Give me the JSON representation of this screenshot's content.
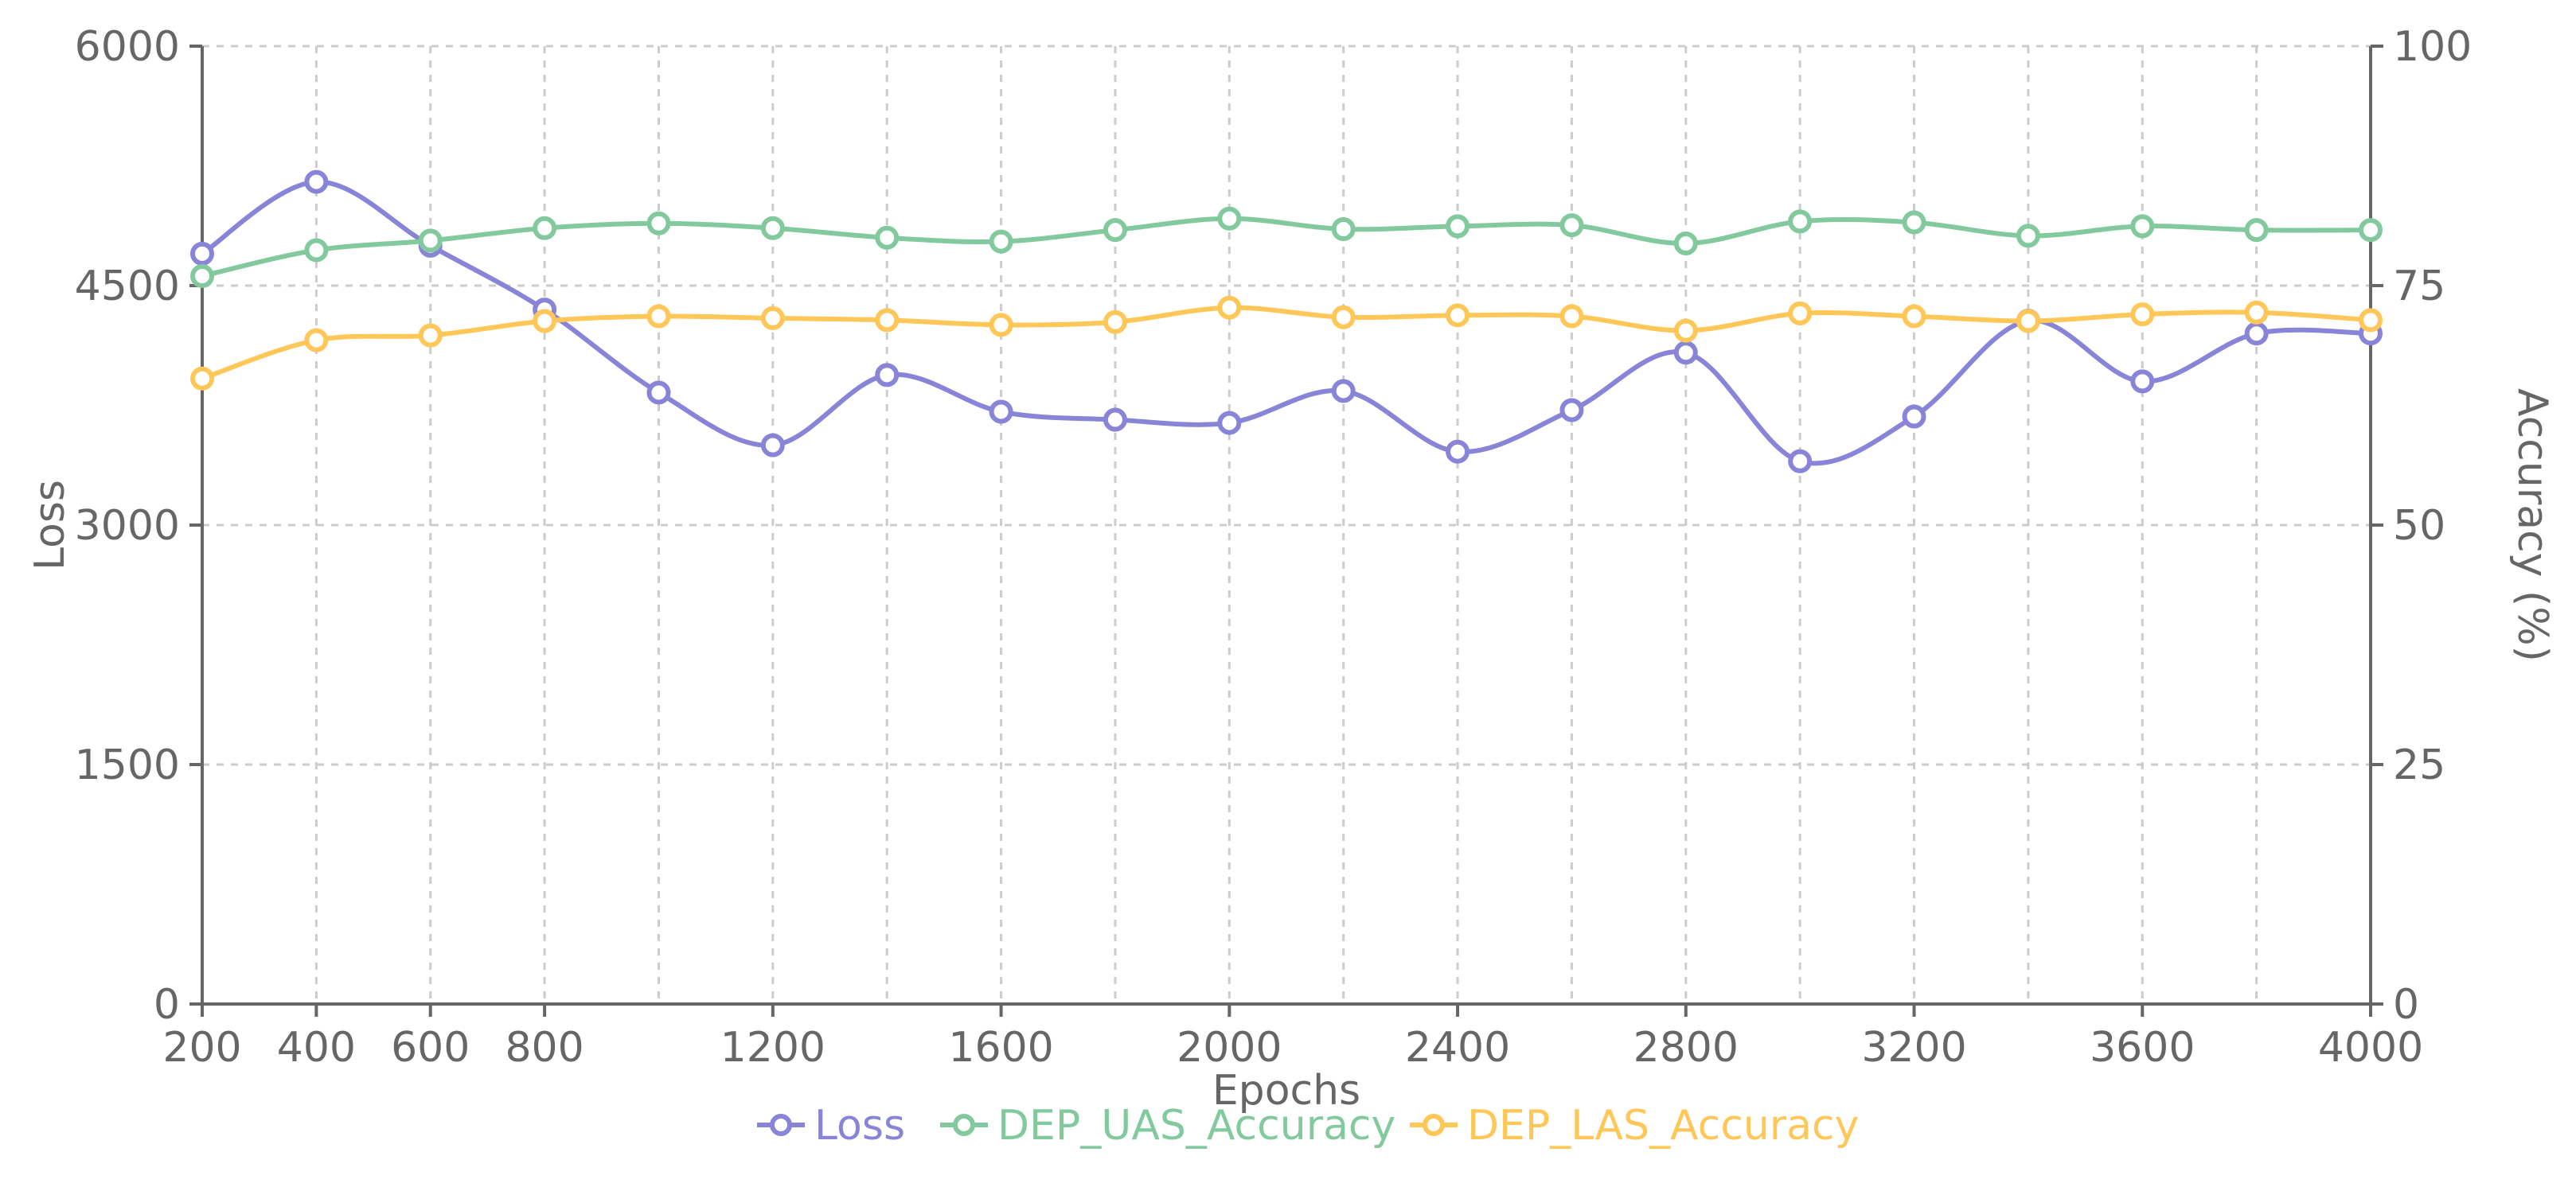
{
  "colors": {
    "loss": "#8884d8",
    "uas": "#82ca9d",
    "las": "#ffc658",
    "grid": "#cccccc",
    "axis": "#666666",
    "text": "#666666"
  },
  "chart_data": {
    "type": "line",
    "x": [
      200,
      400,
      600,
      800,
      1000,
      1200,
      1400,
      1600,
      1800,
      2000,
      2200,
      2400,
      2600,
      2800,
      3000,
      3200,
      3400,
      3600,
      3800,
      4000
    ],
    "x_ticks": [
      200,
      400,
      600,
      800,
      1200,
      1600,
      2000,
      2400,
      2800,
      3200,
      3600,
      4000
    ],
    "xlabel": "Epochs",
    "xlim": [
      200,
      4000
    ],
    "ylabel_left": "Loss",
    "ylim_left": [
      0,
      6000
    ],
    "yticks_left": [
      0,
      1500,
      3000,
      4500,
      6000
    ],
    "ylabel_right": "Accuracy (%)",
    "ylim_right": [
      0,
      100
    ],
    "yticks_right": [
      0,
      25,
      50,
      75,
      100
    ],
    "grid": true,
    "legend_position": "bottom-center",
    "series": [
      {
        "name": "Loss",
        "axis": "left",
        "color_key": "loss",
        "values": [
          4700,
          5150,
          4750,
          4350,
          3830,
          3500,
          3940,
          3710,
          3660,
          3640,
          3840,
          3460,
          3720,
          4080,
          3400,
          3680,
          4280,
          3900,
          4200,
          4200
        ]
      },
      {
        "name": "DEP_UAS_Accuracy",
        "axis": "right",
        "color_key": "uas",
        "values": [
          76.0,
          78.7,
          79.7,
          81.0,
          81.5,
          81.0,
          80.0,
          79.6,
          80.8,
          82.0,
          80.9,
          81.2,
          81.3,
          79.4,
          81.7,
          81.6,
          80.2,
          81.2,
          80.8,
          80.8
        ]
      },
      {
        "name": "DEP_LAS_Accuracy",
        "axis": "right",
        "color_key": "las",
        "values": [
          65.3,
          69.3,
          69.8,
          71.3,
          71.8,
          71.6,
          71.4,
          70.9,
          71.2,
          72.7,
          71.7,
          71.9,
          71.8,
          70.3,
          72.1,
          71.8,
          71.3,
          72.0,
          72.2,
          71.4
        ]
      }
    ]
  }
}
